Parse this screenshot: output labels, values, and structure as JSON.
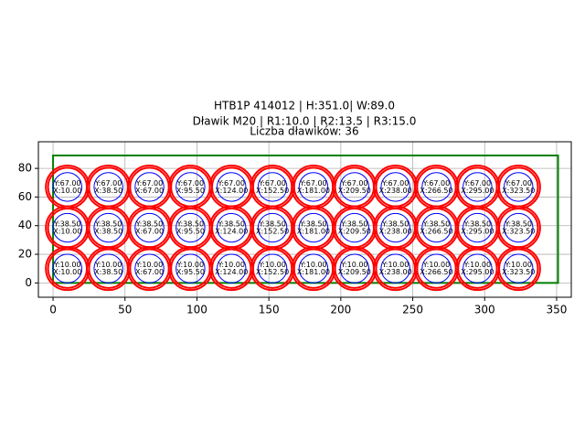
{
  "chart_data": {
    "type": "circles",
    "title_lines": [
      "HTB1P 414012 | H:351.0| W:89.0",
      "Dławik M20 | R1:10.0 | R2:13.5 | R3:15.0",
      "Liczba dławików: 36"
    ],
    "x": [
      10,
      38.5,
      67,
      95.5,
      124,
      152.5,
      181,
      209.5,
      238,
      266.5,
      295,
      323.5,
      10,
      38.5,
      67,
      95.5,
      124,
      152.5,
      181,
      209.5,
      238,
      266.5,
      295,
      323.5,
      10,
      38.5,
      67,
      95.5,
      124,
      152.5,
      181,
      209.5,
      238,
      266.5,
      295,
      323.5
    ],
    "y": [
      10,
      10,
      10,
      10,
      10,
      10,
      10,
      10,
      10,
      10,
      10,
      10,
      38.5,
      38.5,
      38.5,
      38.5,
      38.5,
      38.5,
      38.5,
      38.5,
      38.5,
      38.5,
      38.5,
      38.5,
      67,
      67,
      67,
      67,
      67,
      67,
      67,
      67,
      67,
      67,
      67,
      67
    ],
    "x_labels": [
      "X:10.00",
      "X:38.50",
      "X:67.00",
      "X:95.50",
      "X:124.00",
      "X:152.50",
      "X:181.00",
      "X:209.50",
      "X:238.00",
      "X:266.50",
      "X:295.00",
      "X:323.50",
      "X:10.00",
      "X:38.50",
      "X:67.00",
      "X:95.50",
      "X:124.00",
      "X:152.50",
      "X:181.00",
      "X:209.50",
      "X:238.00",
      "X:266.50",
      "X:295.00",
      "X:323.50",
      "X:10.00",
      "X:38.50",
      "X:67.00",
      "X:95.50",
      "X:124.00",
      "X:152.50",
      "X:181.00",
      "X:209.50",
      "X:238.00",
      "X:266.50",
      "X:295.00",
      "X:323.50"
    ],
    "y_labels": [
      "Y:10.00",
      "Y:10.00",
      "Y:10.00",
      "Y:10.00",
      "Y:10.00",
      "Y:10.00",
      "Y:10.00",
      "Y:10.00",
      "Y:10.00",
      "Y:10.00",
      "Y:10.00",
      "Y:10.00",
      "Y:38.50",
      "Y:38.50",
      "Y:38.50",
      "Y:38.50",
      "Y:38.50",
      "Y:38.50",
      "Y:38.50",
      "Y:38.50",
      "Y:38.50",
      "Y:38.50",
      "Y:38.50",
      "Y:38.50",
      "Y:67.00",
      "Y:67.00",
      "Y:67.00",
      "Y:67.00",
      "Y:67.00",
      "Y:67.00",
      "Y:67.00",
      "Y:67.00",
      "Y:67.00",
      "Y:67.00",
      "Y:67.00",
      "Y:67.00"
    ],
    "radii": [
      10,
      13.5,
      15
    ],
    "radii_colors": [
      "#0000ff",
      "#ff0000",
      "#ff0000"
    ],
    "box": {
      "width": 351,
      "height": 89,
      "color": "#008000"
    },
    "xlim": [
      -10.2,
      360.2
    ],
    "ylim": [
      -10,
      98.6
    ],
    "xticks": [
      0,
      50,
      100,
      150,
      200,
      250,
      300,
      350
    ],
    "yticks": [
      0,
      20,
      40,
      60,
      80
    ],
    "grid": true
  }
}
